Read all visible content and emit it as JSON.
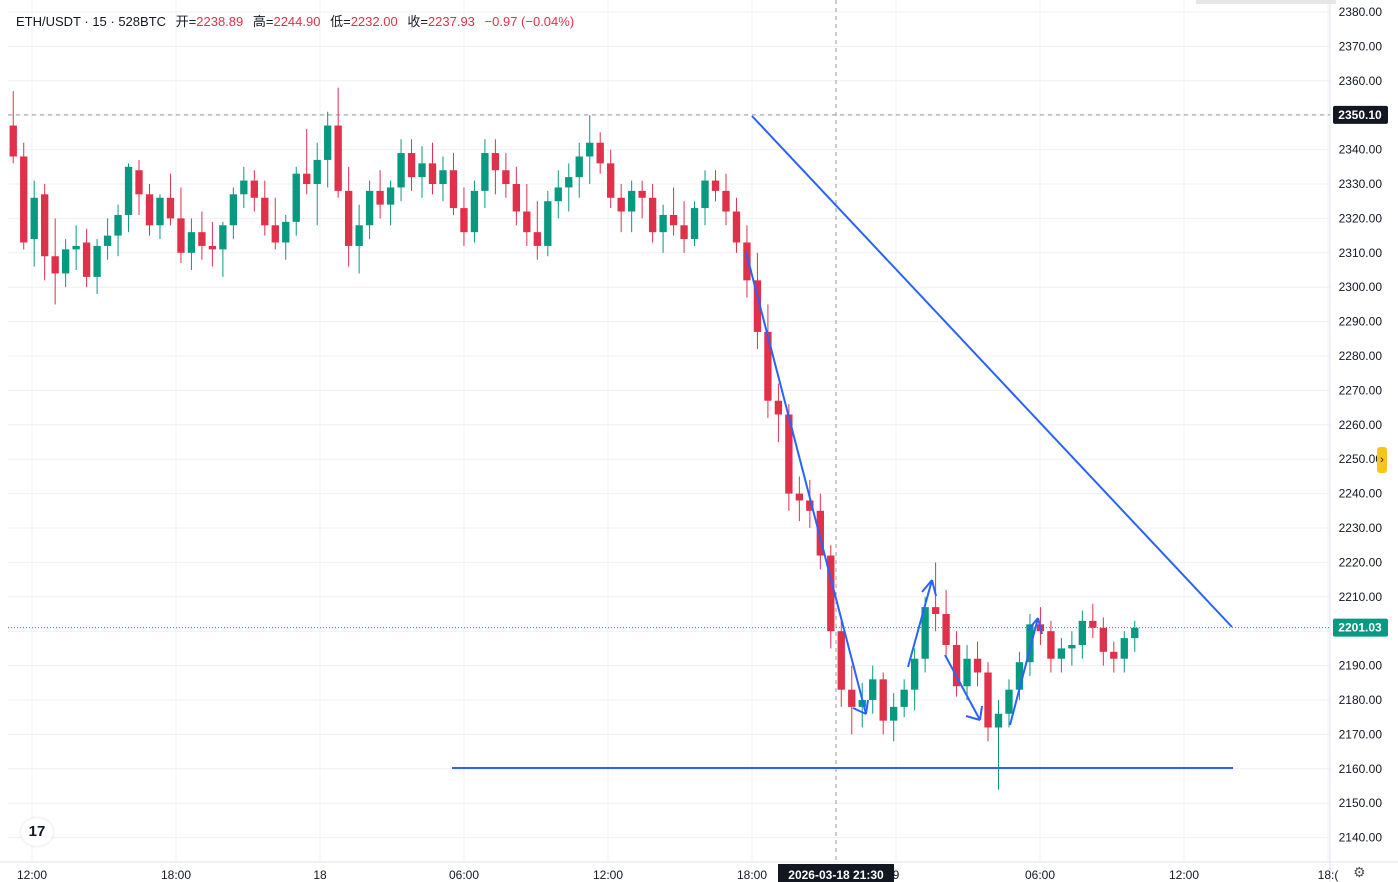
{
  "header": {
    "symbol": "ETH/USDT · 15 · 528BTC",
    "open_label": "开=",
    "open_value": "2238.89",
    "high_label": "高=",
    "high_value": "2244.90",
    "low_label": "低=",
    "low_value": "2232.00",
    "close_label": "收=",
    "close_value": "2237.93",
    "change": "−0.97 (−0.04%)"
  },
  "logo_text": "17",
  "settings_icon": "gear-icon",
  "colors": {
    "up": "#089981",
    "down": "#e0314b",
    "drawing": "#2962ff",
    "grid": "#eef0f3",
    "price_label_bg": "#131722"
  },
  "chart_data": {
    "type": "candlestick",
    "ylim": [
      2133,
      2383
    ],
    "yticks": [
      "2380.00",
      "2370.00",
      "2360.00",
      "2350.00",
      "2340.00",
      "2330.00",
      "2320.00",
      "2310.00",
      "2300.00",
      "2290.00",
      "2280.00",
      "2270.00",
      "2260.00",
      "2250.00",
      "2240.00",
      "2230.00",
      "2220.00",
      "2210.00",
      "2200.00",
      "2190.00",
      "2180.00",
      "2170.00",
      "2160.00",
      "2150.00",
      "2140.00"
    ],
    "xticks": [
      {
        "label": "12:00",
        "t": 0
      },
      {
        "label": "18:00",
        "t": 24
      },
      {
        "label": "18",
        "t": 48
      },
      {
        "label": "06:00",
        "t": 72
      },
      {
        "label": "12:00",
        "t": 96
      },
      {
        "label": "18:00",
        "t": 120
      },
      {
        "label": "9",
        "t": 144
      },
      {
        "label": "06:00",
        "t": 168
      },
      {
        "label": "12:00",
        "t": 192
      },
      {
        "label": "18:(",
        "t": 216
      }
    ],
    "crosshair": {
      "price": "2350.10",
      "time_label": "2026-03-18   21:30",
      "t": 134
    },
    "last_price": "2201.03",
    "candles": [
      [
        2347,
        2357,
        2336,
        2338
      ],
      [
        2338,
        2342,
        2311,
        2313
      ],
      [
        2314,
        2331,
        2306,
        2326
      ],
      [
        2327,
        2330,
        2302,
        2309
      ],
      [
        2309,
        2320,
        2295,
        2304
      ],
      [
        2304,
        2314,
        2300,
        2311
      ],
      [
        2311,
        2318,
        2305,
        2312
      ],
      [
        2313,
        2317,
        2300,
        2303
      ],
      [
        2303,
        2314,
        2298,
        2312
      ],
      [
        2312,
        2320,
        2308,
        2315
      ],
      [
        2315,
        2324,
        2309,
        2321
      ],
      [
        2321,
        2336,
        2316,
        2335
      ],
      [
        2334,
        2337,
        2321,
        2327
      ],
      [
        2327,
        2330,
        2315,
        2318
      ],
      [
        2318,
        2327,
        2314,
        2326
      ],
      [
        2326,
        2333,
        2318,
        2320
      ],
      [
        2320,
        2329,
        2307,
        2310
      ],
      [
        2310,
        2320,
        2305,
        2316
      ],
      [
        2316,
        2322,
        2308,
        2312
      ],
      [
        2312,
        2319,
        2306,
        2311
      ],
      [
        2311,
        2319,
        2303,
        2318
      ],
      [
        2318,
        2329,
        2314,
        2327
      ],
      [
        2327,
        2335,
        2323,
        2331
      ],
      [
        2331,
        2334,
        2322,
        2326
      ],
      [
        2326,
        2331,
        2315,
        2318
      ],
      [
        2318,
        2326,
        2311,
        2313
      ],
      [
        2313,
        2321,
        2308,
        2319
      ],
      [
        2319,
        2335,
        2315,
        2333
      ],
      [
        2333,
        2346,
        2327,
        2330
      ],
      [
        2330,
        2342,
        2318,
        2337
      ],
      [
        2337,
        2351,
        2329,
        2347
      ],
      [
        2347,
        2358,
        2326,
        2328
      ],
      [
        2328,
        2335,
        2306,
        2312
      ],
      [
        2312,
        2324,
        2304,
        2318
      ],
      [
        2318,
        2331,
        2314,
        2328
      ],
      [
        2328,
        2334,
        2320,
        2324
      ],
      [
        2324,
        2331,
        2318,
        2329
      ],
      [
        2329,
        2343,
        2325,
        2339
      ],
      [
        2339,
        2343,
        2328,
        2332
      ],
      [
        2332,
        2341,
        2326,
        2336
      ],
      [
        2336,
        2342,
        2327,
        2330
      ],
      [
        2330,
        2338,
        2325,
        2334
      ],
      [
        2334,
        2339,
        2321,
        2323
      ],
      [
        2323,
        2329,
        2312,
        2316
      ],
      [
        2316,
        2331,
        2313,
        2328
      ],
      [
        2328,
        2343,
        2323,
        2339
      ],
      [
        2339,
        2343,
        2327,
        2334
      ],
      [
        2334,
        2339,
        2326,
        2330
      ],
      [
        2330,
        2335,
        2318,
        2322
      ],
      [
        2322,
        2330,
        2312,
        2316
      ],
      [
        2316,
        2325,
        2308,
        2312
      ],
      [
        2312,
        2328,
        2309,
        2325
      ],
      [
        2325,
        2334,
        2320,
        2329
      ],
      [
        2329,
        2336,
        2322,
        2332
      ],
      [
        2332,
        2342,
        2326,
        2338
      ],
      [
        2338,
        2350,
        2330,
        2342
      ],
      [
        2342,
        2345,
        2333,
        2336
      ],
      [
        2336,
        2340,
        2323,
        2326
      ],
      [
        2326,
        2330,
        2316,
        2322
      ],
      [
        2322,
        2331,
        2316,
        2328
      ],
      [
        2328,
        2331,
        2320,
        2326
      ],
      [
        2326,
        2330,
        2313,
        2316
      ],
      [
        2316,
        2324,
        2310,
        2321
      ],
      [
        2321,
        2329,
        2315,
        2318
      ],
      [
        2318,
        2325,
        2310,
        2314
      ],
      [
        2314,
        2325,
        2312,
        2323
      ],
      [
        2323,
        2334,
        2318,
        2331
      ],
      [
        2331,
        2334,
        2325,
        2328
      ],
      [
        2328,
        2333,
        2318,
        2322
      ],
      [
        2322,
        2326,
        2310,
        2313
      ],
      [
        2313,
        2318,
        2297,
        2302
      ],
      [
        2302,
        2310,
        2282,
        2287
      ],
      [
        2287,
        2295,
        2262,
        2267
      ],
      [
        2267,
        2272,
        2255,
        2263
      ],
      [
        2263,
        2266,
        2235,
        2240
      ],
      [
        2240,
        2245,
        2232,
        2238
      ],
      [
        2238,
        2244,
        2230,
        2235
      ],
      [
        2235,
        2240,
        2218,
        2222
      ],
      [
        2222,
        2225,
        2195,
        2200
      ],
      [
        2200,
        2204,
        2178,
        2183
      ],
      [
        2183,
        2190,
        2170,
        2178
      ],
      [
        2178,
        2185,
        2172,
        2180
      ],
      [
        2180,
        2190,
        2176,
        2186
      ],
      [
        2186,
        2188,
        2170,
        2174
      ],
      [
        2174,
        2182,
        2168,
        2178
      ],
      [
        2178,
        2186,
        2175,
        2183
      ],
      [
        2183,
        2195,
        2177,
        2192
      ],
      [
        2192,
        2210,
        2188,
        2207
      ],
      [
        2207,
        2220,
        2200,
        2205
      ],
      [
        2205,
        2212,
        2192,
        2196
      ],
      [
        2196,
        2200,
        2181,
        2184
      ],
      [
        2184,
        2196,
        2180,
        2192
      ],
      [
        2192,
        2197,
        2184,
        2188
      ],
      [
        2188,
        2191,
        2168,
        2172
      ],
      [
        2172,
        2180,
        2154,
        2176
      ],
      [
        2176,
        2186,
        2172,
        2183
      ],
      [
        2183,
        2194,
        2180,
        2191
      ],
      [
        2191,
        2205,
        2187,
        2202
      ],
      [
        2202,
        2207,
        2196,
        2200
      ],
      [
        2200,
        2203,
        2188,
        2192
      ],
      [
        2192,
        2198,
        2188,
        2195
      ],
      [
        2195,
        2200,
        2190,
        2196
      ],
      [
        2196,
        2206,
        2192,
        2203
      ],
      [
        2203,
        2208,
        2198,
        2201
      ],
      [
        2201,
        2204,
        2190,
        2194
      ],
      [
        2194,
        2197,
        2188,
        2192
      ],
      [
        2192,
        2200,
        2188,
        2198
      ],
      [
        2198,
        2203,
        2194,
        2201
      ]
    ]
  }
}
